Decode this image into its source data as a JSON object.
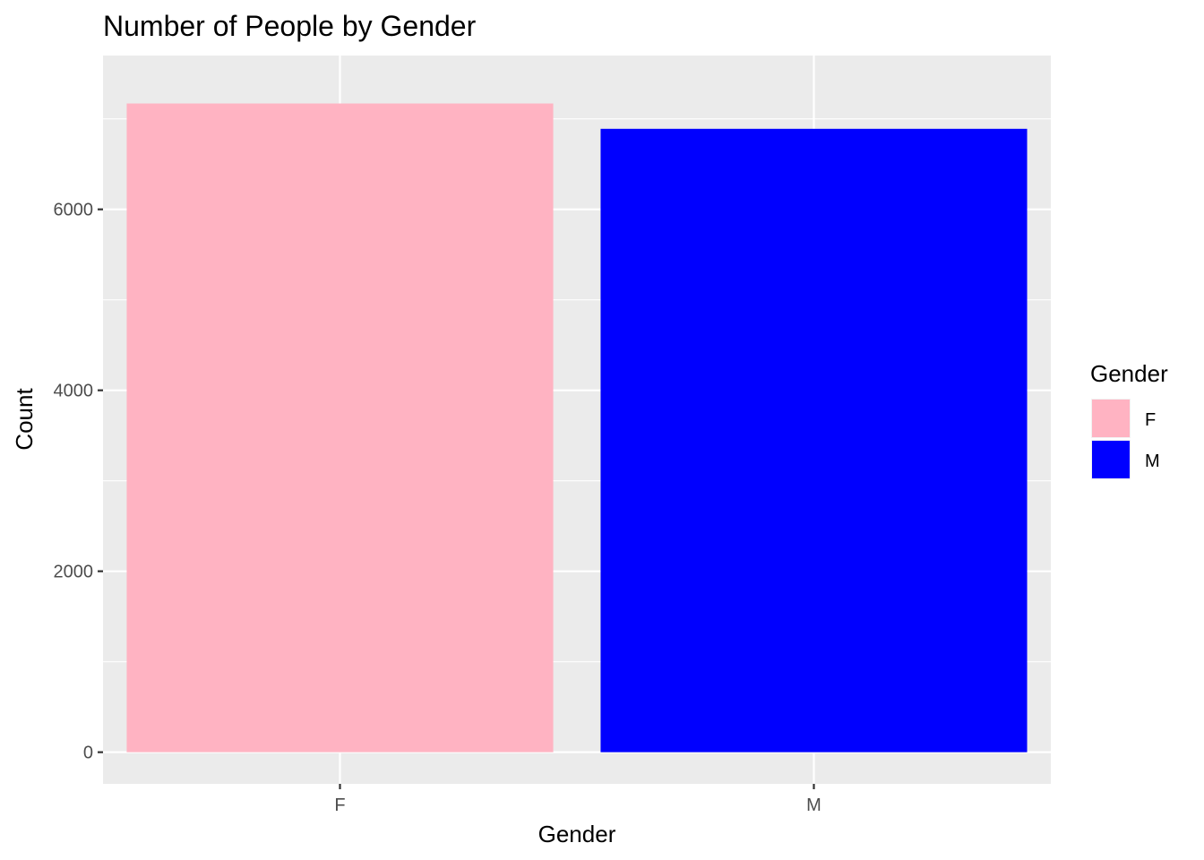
{
  "chart_data": {
    "type": "bar",
    "title": "Number of People by Gender",
    "xlabel": "Gender",
    "ylabel": "Count",
    "categories": [
      "F",
      "M"
    ],
    "values": [
      7170,
      6890
    ],
    "colors": [
      "#FFB3C2",
      "#0000FF"
    ],
    "ylim": [
      -350,
      7700
    ],
    "yticks": [
      0,
      2000,
      4000,
      6000
    ],
    "ytick_labels": [
      "0",
      "2000",
      "4000",
      "6000"
    ],
    "yminor": [
      1000,
      3000,
      5000,
      7000
    ],
    "grid": true,
    "legend": {
      "title": "Gender",
      "placement": "right",
      "entries": [
        {
          "label": "F",
          "color": "#FFB3C2"
        },
        {
          "label": "M",
          "color": "#0000FF"
        }
      ]
    }
  }
}
